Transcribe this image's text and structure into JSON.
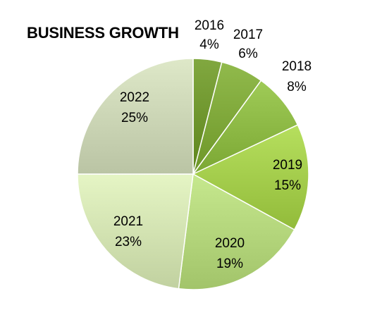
{
  "chart_data": {
    "type": "pie",
    "title": "BUSINESS GROWTH",
    "categories": [
      "2016",
      "2017",
      "2018",
      "2019",
      "2020",
      "2021",
      "2022"
    ],
    "values": [
      4,
      6,
      8,
      15,
      19,
      23,
      25
    ],
    "labels": [
      "4%",
      "6%",
      "8%",
      "15%",
      "19%",
      "23%",
      "25%"
    ],
    "colors": [
      "#6f962e",
      "#7fa83a",
      "#8db945",
      "#a4cd4c",
      "#b4d67c",
      "#d3e3b2",
      "#ccd6b6"
    ],
    "legend": "none"
  }
}
